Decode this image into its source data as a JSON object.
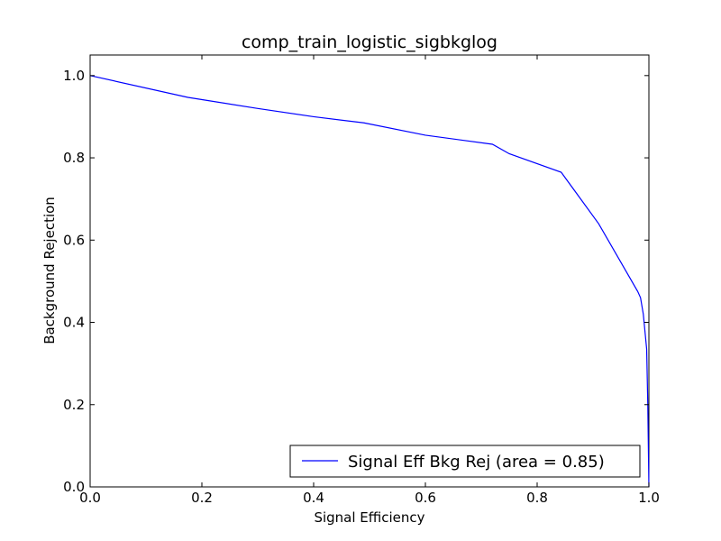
{
  "chart_data": {
    "type": "line",
    "title": "comp_train_logistic_sigbkglog",
    "xlabel": "Signal Efficiency",
    "ylabel": "Background Rejection",
    "xlim": [
      0.0,
      1.0
    ],
    "ylim": [
      0.0,
      1.05
    ],
    "xticks": [
      "0.0",
      "0.2",
      "0.4",
      "0.6",
      "0.8",
      "1.0"
    ],
    "yticks": [
      "0.0",
      "0.2",
      "0.4",
      "0.6",
      "0.8",
      "1.0"
    ],
    "grid": false,
    "legend_position": "lower-right",
    "series": [
      {
        "name": "Signal Eff Bkg Rej (area = 0.85)",
        "color": "#0000ff",
        "x": [
          0.0,
          0.175,
          0.3,
          0.4,
          0.49,
          0.6,
          0.72,
          0.75,
          0.843,
          0.91,
          0.98,
          0.985,
          0.99,
          0.996,
          0.998,
          0.999,
          1.0
        ],
        "y": [
          1.0,
          0.947,
          0.92,
          0.9,
          0.885,
          0.855,
          0.833,
          0.81,
          0.765,
          0.64,
          0.475,
          0.46,
          0.42,
          0.335,
          0.2,
          0.1,
          0.0
        ]
      }
    ]
  }
}
